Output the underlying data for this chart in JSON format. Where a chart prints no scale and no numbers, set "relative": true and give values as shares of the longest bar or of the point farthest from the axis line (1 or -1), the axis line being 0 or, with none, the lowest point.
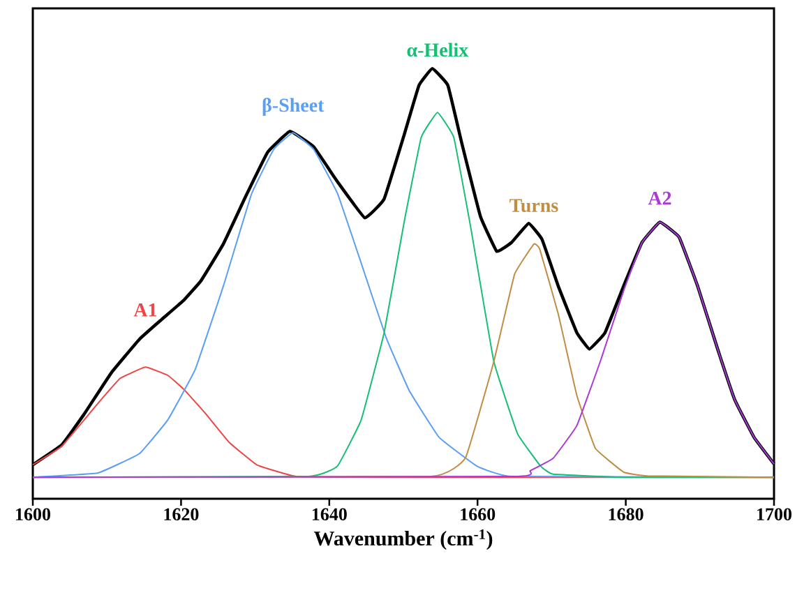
{
  "chart_data": {
    "type": "line",
    "relative": true,
    "xlabel": "Wavenumber (cm$^{-1}$)",
    "xlim": [
      1600,
      1700
    ],
    "xticks": [
      1600,
      1620,
      1640,
      1660,
      1680,
      1700
    ],
    "tick_labels": "x",
    "series": [
      {
        "color": "#000000",
        "x": [
          1600,
          1603.9,
          1606.9,
          1610.6,
          1614.4,
          1617.4,
          1620.4,
          1622.7,
          1625.7,
          1628.7,
          1631.7,
          1634.7,
          1637.9,
          1641.1,
          1644.8,
          1647.4,
          1650.1,
          1652.1,
          1653.9,
          1656.0,
          1657.9,
          1660.4,
          1662.6,
          1664.6,
          1666.9,
          1668.7,
          1670.9,
          1673.4,
          1675.1,
          1677.2,
          1679.7,
          1682.2,
          1684.6,
          1687.2,
          1689.7,
          1692.3,
          1694.7,
          1697.3,
          1700
        ],
        "values": [
          0.079,
          0.125,
          0.196,
          0.293,
          0.371,
          0.417,
          0.462,
          0.507,
          0.592,
          0.702,
          0.806,
          0.854,
          0.818,
          0.737,
          0.653,
          0.697,
          0.846,
          0.961,
          1.0,
          0.961,
          0.825,
          0.656,
          0.575,
          0.596,
          0.64,
          0.603,
          0.494,
          0.386,
          0.348,
          0.386,
          0.494,
          0.596,
          0.643,
          0.608,
          0.494,
          0.353,
          0.23,
          0.143,
          0.081
        ]
      },
      {
        "name": "A1",
        "color": "#ef4444",
        "x": [
          1600,
          1603.9,
          1608.8,
          1611.8,
          1615.2,
          1618.2,
          1620.4,
          1623.4,
          1626.5,
          1630.2,
          1635.5,
          1650,
          1700
        ],
        "values": [
          0.079,
          0.122,
          0.222,
          0.28,
          0.306,
          0.287,
          0.254,
          0.196,
          0.131,
          0.079,
          0.052,
          0.05,
          0.05
        ]
      },
      {
        "name": "β-Sheet",
        "color": "#5b9ef5",
        "x": [
          1600,
          1608.8,
          1614.4,
          1618.2,
          1621.9,
          1625.7,
          1629.5,
          1632.5,
          1635.1,
          1637.9,
          1641.1,
          1644.3,
          1647.7,
          1650.8,
          1654.8,
          1659.9,
          1664.6,
          1700
        ],
        "values": [
          0.05,
          0.06,
          0.105,
          0.183,
          0.3,
          0.494,
          0.708,
          0.812,
          0.851,
          0.812,
          0.71,
          0.548,
          0.373,
          0.251,
          0.143,
          0.076,
          0.052,
          0.05
        ]
      },
      {
        "name": "α-Helix",
        "color": "#15bf74",
        "x": [
          1600,
          1637.2,
          1641.1,
          1644.3,
          1647.4,
          1650.1,
          1652.4,
          1654.6,
          1656.8,
          1659.1,
          1662.2,
          1665.4,
          1668.5,
          1670.2,
          1680,
          1700
        ],
        "values": [
          0.05,
          0.052,
          0.076,
          0.183,
          0.386,
          0.643,
          0.84,
          0.898,
          0.84,
          0.629,
          0.319,
          0.151,
          0.076,
          0.057,
          0.05,
          0.05
        ]
      },
      {
        "name": "Turns",
        "color": "#c08d45",
        "x": [
          1600,
          1653.7,
          1658.4,
          1662.2,
          1665.0,
          1667.6,
          1668.4,
          1670.9,
          1673.4,
          1675.9,
          1679.7,
          1682.9,
          1700
        ],
        "values": [
          0.05,
          0.052,
          0.096,
          0.319,
          0.522,
          0.592,
          0.58,
          0.429,
          0.24,
          0.117,
          0.062,
          0.053,
          0.05
        ]
      },
      {
        "name": "A2",
        "color": "#a93ad6",
        "x": [
          1600,
          1665.4,
          1667.1,
          1670.2,
          1673.4,
          1676.6,
          1679.7,
          1682.2,
          1684.6,
          1687.2,
          1689.7,
          1692.3,
          1694.7,
          1697.3,
          1700
        ],
        "values": [
          0.05,
          0.052,
          0.065,
          0.094,
          0.17,
          0.321,
          0.483,
          0.596,
          0.643,
          0.608,
          0.494,
          0.353,
          0.23,
          0.143,
          0.081
        ]
      }
    ]
  }
}
